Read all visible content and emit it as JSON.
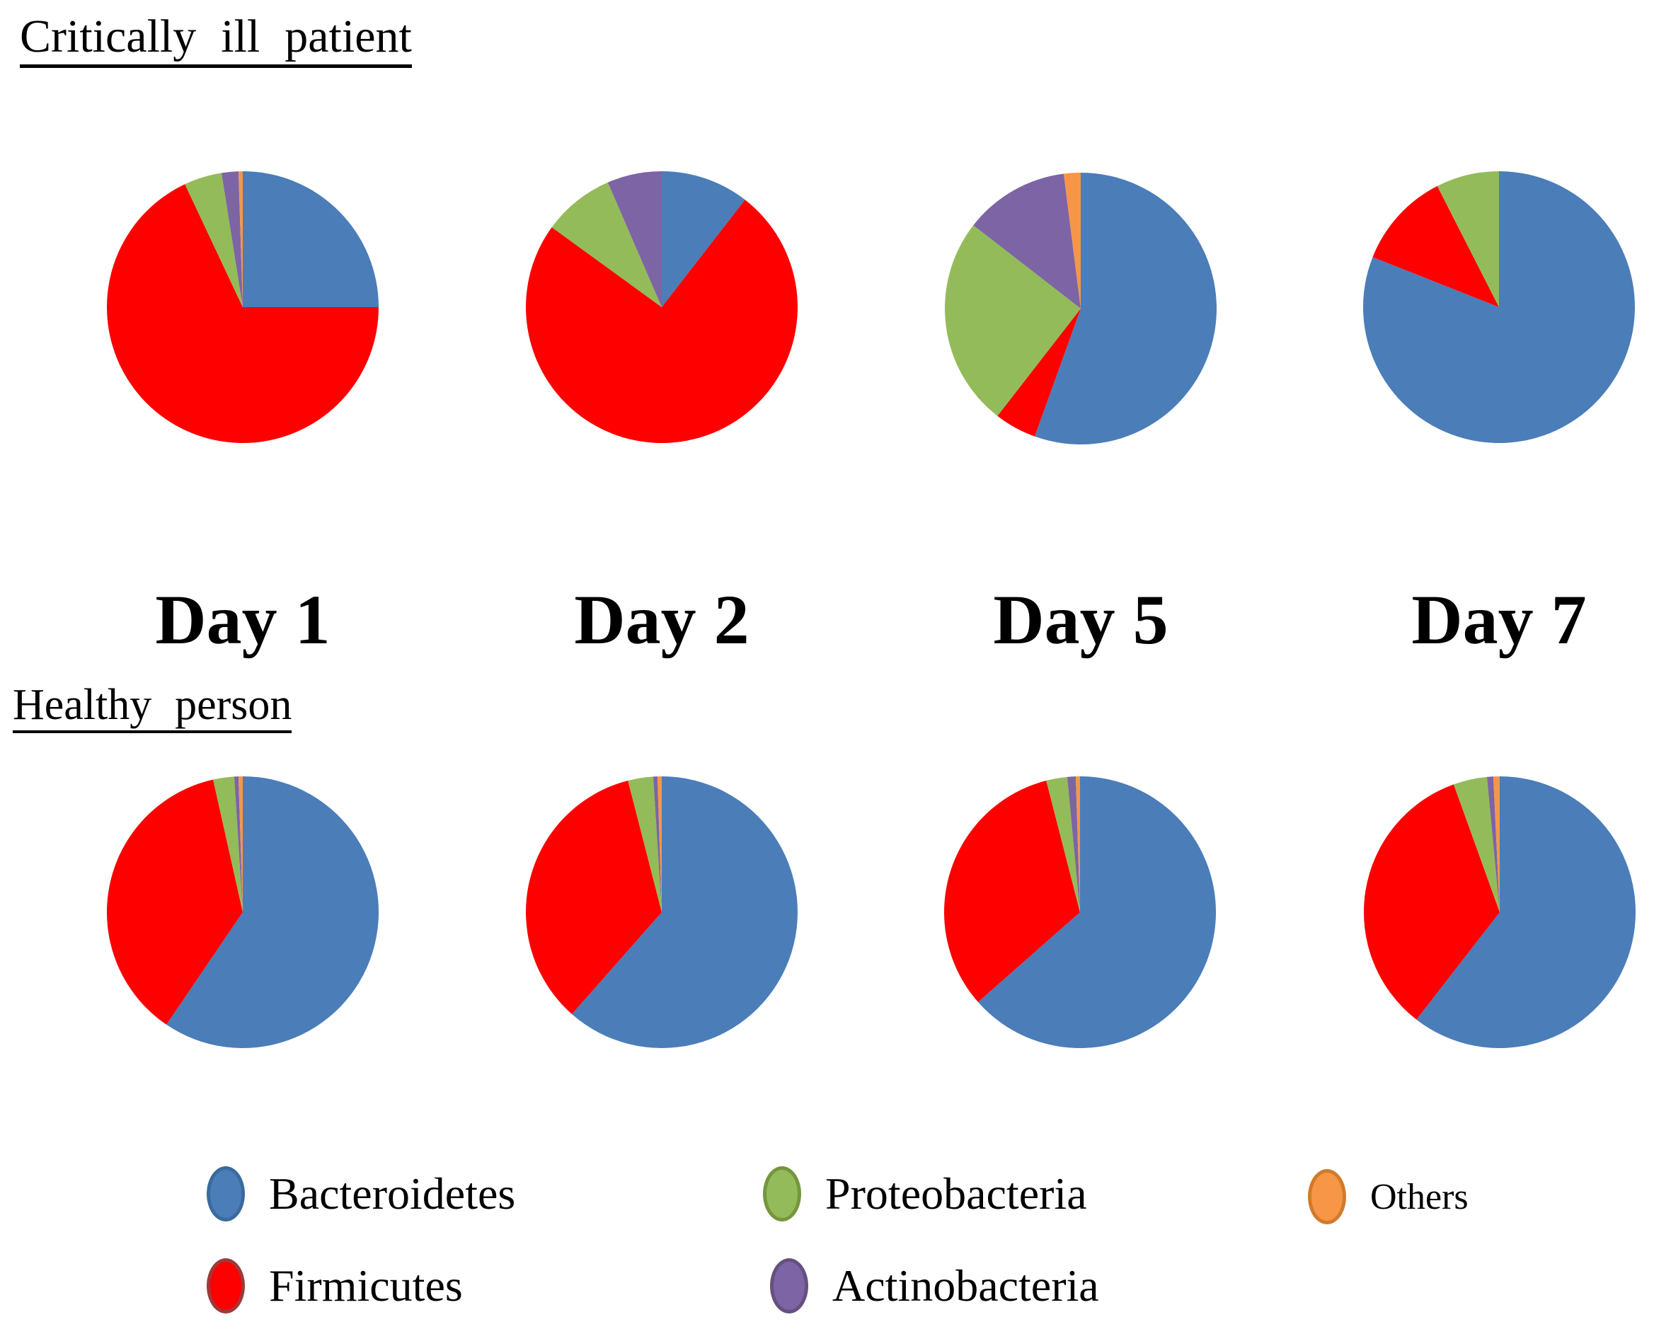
{
  "figure": {
    "section_titles": {
      "critical": "Critically ill patient",
      "healthy": "Healthy person"
    },
    "day_labels": [
      "Day 1",
      "Day 2",
      "Day 5",
      "Day 7"
    ]
  },
  "legend": {
    "items": [
      {
        "label": "Bacteroidetes",
        "color": "#4B7DB8",
        "border": "#3A6A9E"
      },
      {
        "label": "Proteobacteria",
        "color": "#94BB59",
        "border": "#74963E"
      },
      {
        "label": "Others",
        "color": "#F79646",
        "border": "#D07B2A"
      },
      {
        "label": "Firmicutes",
        "color": "#FF0000",
        "border": "#9E3A3A"
      },
      {
        "label": "Actinobacteria",
        "color": "#7D64A5",
        "border": "#65507F"
      }
    ]
  },
  "chart_data": {
    "type": "pie",
    "unit": "percent",
    "categories": [
      "Bacteroidetes",
      "Firmicutes",
      "Proteobacteria",
      "Actinobacteria",
      "Others"
    ],
    "colors": [
      "#4B7DB8",
      "#FF0000",
      "#94BB59",
      "#7D64A5",
      "#F79646"
    ],
    "start_angle_deg": 0,
    "direction": "clockwise",
    "legend_position": "bottom",
    "groups": [
      {
        "group": "Critically ill patient",
        "pies": [
          {
            "day": "Day 1",
            "values": [
              25,
              68,
              4.5,
              2,
              0.5
            ]
          },
          {
            "day": "Day 2",
            "values": [
              10.5,
              74.5,
              8.5,
              6.5,
              0
            ]
          },
          {
            "day": "Day 5",
            "values": [
              55.5,
              5,
              25,
              12.5,
              2
            ]
          },
          {
            "day": "Day 7",
            "values": [
              81,
              11.5,
              7.5,
              0,
              0
            ]
          }
        ]
      },
      {
        "group": "Healthy person",
        "pies": [
          {
            "day": "Day 1",
            "values": [
              59.5,
              37,
              2.5,
              0.5,
              0.5
            ]
          },
          {
            "day": "Day 2",
            "values": [
              61.5,
              34.5,
              3,
              0.5,
              0.5
            ]
          },
          {
            "day": "Day 5",
            "values": [
              63.5,
              32.5,
              2.5,
              1,
              0.5
            ]
          },
          {
            "day": "Day 7",
            "values": [
              60.5,
              34,
              4,
              0.75,
              0.75
            ]
          }
        ]
      }
    ]
  }
}
